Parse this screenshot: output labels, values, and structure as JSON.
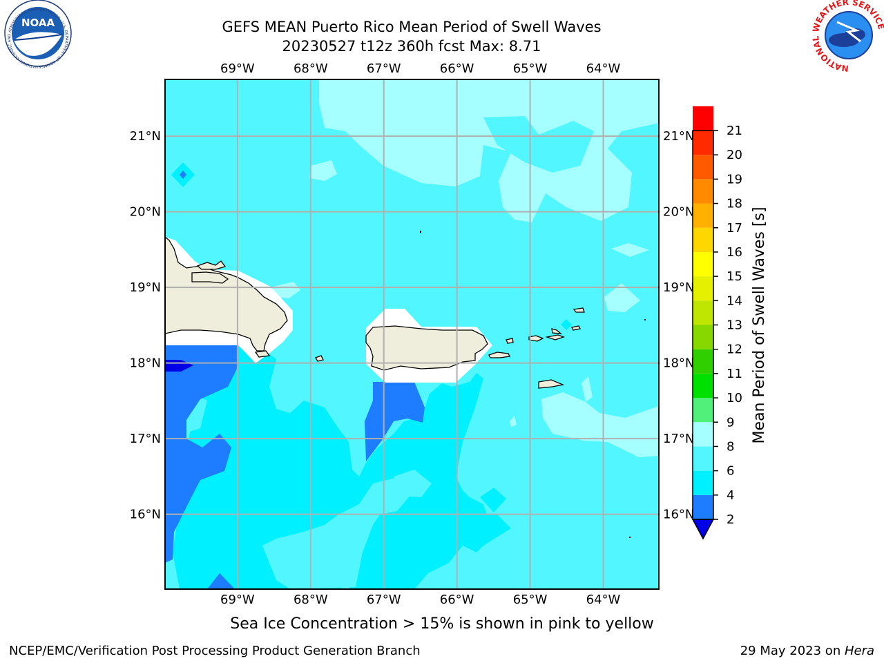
{
  "title": {
    "line1": "GEFS MEAN Puerto Rico Mean Period of Swell Waves",
    "line2": "20230527 t12z 360h fcst   Max: 8.71"
  },
  "map": {
    "lon_labels": [
      "69°W",
      "68°W",
      "67°W",
      "66°W",
      "65°W",
      "64°W"
    ],
    "lat_labels": [
      "21°N",
      "20°N",
      "19°N",
      "18°N",
      "17°N",
      "16°N"
    ],
    "extent": {
      "lon_min": -69.99,
      "lon_max": -63.24,
      "lat_min": 15.01,
      "lat_max": 21.75
    },
    "grid": true,
    "land_color": "#efeedc"
  },
  "colorbar": {
    "label": "Mean Period of Swell Waves [s]",
    "tick_labels": [
      "2",
      "4",
      "6",
      "8",
      "9",
      "10",
      "11",
      "12",
      "13",
      "14",
      "15",
      "16",
      "17",
      "18",
      "19",
      "20",
      "21"
    ],
    "colors": [
      "#1e7cff",
      "#00f0ff",
      "#52f6ff",
      "#a6ffff",
      "#50f07a",
      "#00e000",
      "#30d000",
      "#86d800",
      "#bfe600",
      "#e4f000",
      "#ffff00",
      "#ffd700",
      "#ffb000",
      "#ff8a00",
      "#ff5a00",
      "#ff2a00",
      "#ff0000"
    ],
    "under_color": "#0000e6"
  },
  "caption": "Sea Ice Concentration > 15% is shown in pink to yellow",
  "footer": {
    "left": "NCEP/EMC/Verification Post Processing Product Generation Branch",
    "right_date": "29 May 2023 on ",
    "right_host": "Hera"
  },
  "logos": {
    "noaa_text": "NOAA",
    "noaa_ring": "NATIONAL OCEANIC AND ATMOSPHERIC ADMINISTRATION · U.S. DEPARTMENT OF COMMERCE",
    "nws_ring": "NATIONAL WEATHER SERVICE"
  }
}
